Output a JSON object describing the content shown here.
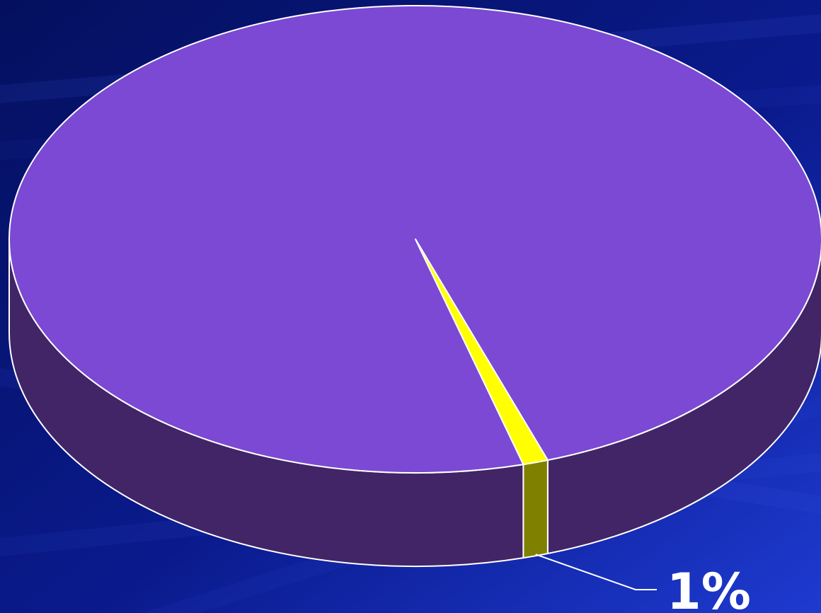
{
  "colors": {
    "background": "#0a1a8c",
    "background_dark": "#04105e",
    "background_light": "#1e3ad0",
    "outline": "#ffffff"
  },
  "chart_data": {
    "type": "pie",
    "style": "3d",
    "title": "",
    "slices": [
      {
        "value": 99,
        "top_color": "#7b49d3",
        "side_color": "#412567"
      },
      {
        "value": 1,
        "top_color": "#ffff00",
        "side_color": "#808000",
        "label": "1%"
      }
    ],
    "start_angle_deg": 74.6,
    "direction": "clockwise",
    "legend": "none"
  }
}
